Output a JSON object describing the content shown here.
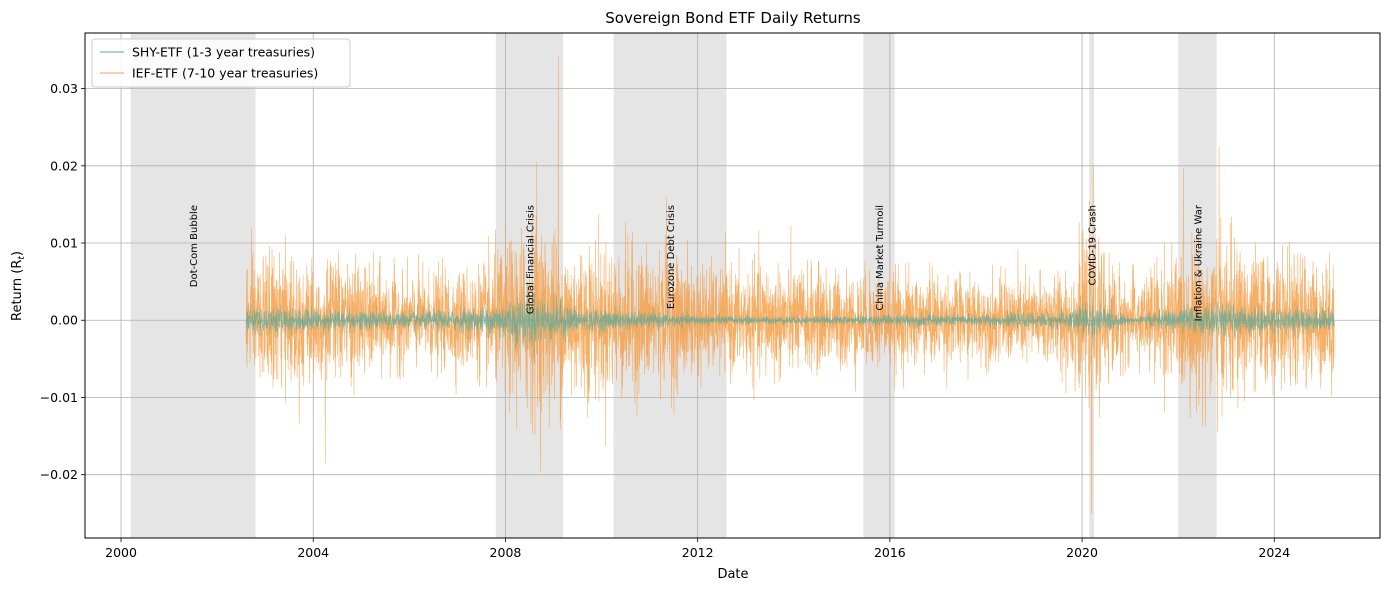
{
  "chart_data": {
    "type": "line",
    "title": "Sovereign Bond ETF Daily Returns",
    "xlabel": "Date",
    "ylabel": "Return (R",
    "ylabel_sub": "t",
    "ylabel_close": ")",
    "xlim": [
      1999.25,
      2026.2
    ],
    "ylim": [
      -0.0282,
      0.0372
    ],
    "x_ticks": [
      {
        "value": 2000,
        "label": "2000"
      },
      {
        "value": 2004,
        "label": "2004"
      },
      {
        "value": 2008,
        "label": "2008"
      },
      {
        "value": 2012,
        "label": "2012"
      },
      {
        "value": 2016,
        "label": "2016"
      },
      {
        "value": 2020,
        "label": "2020"
      },
      {
        "value": 2024,
        "label": "2024"
      }
    ],
    "y_ticks": [
      {
        "value": -0.02,
        "label": "−0.02"
      },
      {
        "value": -0.01,
        "label": "−0.01"
      },
      {
        "value": 0.0,
        "label": "0.00"
      },
      {
        "value": 0.01,
        "label": "0.01"
      },
      {
        "value": 0.02,
        "label": "0.02"
      },
      {
        "value": 0.03,
        "label": "0.03"
      }
    ],
    "grid": true,
    "legend_position": "top-left",
    "crises": [
      {
        "name": "Dot-Com Bubble",
        "start": 2000.2,
        "end": 2002.8
      },
      {
        "name": "Global Financial Crisis",
        "start": 2007.8,
        "end": 2009.2
      },
      {
        "name": "Eurozone Debt Crisis",
        "start": 2010.25,
        "end": 2012.6
      },
      {
        "name": "China Market Turmoil",
        "start": 2015.45,
        "end": 2016.1
      },
      {
        "name": "COVID-19 Crash",
        "start": 2020.15,
        "end": 2020.25
      },
      {
        "name": "Inflation & Ukraine War",
        "start": 2022.0,
        "end": 2022.8
      }
    ],
    "series": [
      {
        "name": "SHY-ETF (1-3 year treasuries)",
        "color": "#5fa89a",
        "start": 2002.6,
        "end": 2025.25,
        "volatility": [
          [
            2002.6,
            0.0009
          ],
          [
            2003.5,
            0.0008
          ],
          [
            2004.5,
            0.0007
          ],
          [
            2006.0,
            0.0006
          ],
          [
            2007.5,
            0.0008
          ],
          [
            2008.5,
            0.0018
          ],
          [
            2009.5,
            0.0008
          ],
          [
            2011.0,
            0.0005
          ],
          [
            2012.5,
            0.0003
          ],
          [
            2013.5,
            0.00025
          ],
          [
            2015.0,
            0.0003
          ],
          [
            2016.5,
            0.0004
          ],
          [
            2018.0,
            0.0004
          ],
          [
            2019.5,
            0.0005
          ],
          [
            2020.2,
            0.0012
          ],
          [
            2021.0,
            0.0002
          ],
          [
            2022.0,
            0.0008
          ],
          [
            2023.0,
            0.001
          ],
          [
            2024.0,
            0.0008
          ],
          [
            2025.25,
            0.0007
          ]
        ]
      },
      {
        "name": "IEF-ETF (7-10 year treasuries)",
        "color": "#f5a04a",
        "start": 2002.6,
        "end": 2025.25,
        "volatility": [
          [
            2002.6,
            0.004
          ],
          [
            2003.5,
            0.0042
          ],
          [
            2004.5,
            0.0038
          ],
          [
            2006.0,
            0.0028
          ],
          [
            2007.5,
            0.0034
          ],
          [
            2008.5,
            0.0062
          ],
          [
            2009.5,
            0.005
          ],
          [
            2011.0,
            0.0045
          ],
          [
            2012.5,
            0.0032
          ],
          [
            2013.5,
            0.0036
          ],
          [
            2015.0,
            0.003
          ],
          [
            2016.5,
            0.003
          ],
          [
            2018.0,
            0.0026
          ],
          [
            2019.5,
            0.003
          ],
          [
            2020.2,
            0.005
          ],
          [
            2021.0,
            0.0025
          ],
          [
            2022.0,
            0.0045
          ],
          [
            2022.8,
            0.0052
          ],
          [
            2024.0,
            0.004
          ],
          [
            2025.25,
            0.0038
          ]
        ],
        "extremes": [
          {
            "x": 2004.25,
            "y": -0.0185
          },
          {
            "x": 2009.1,
            "y": 0.0343
          },
          {
            "x": 2008.65,
            "y": 0.0205
          },
          {
            "x": 2011.35,
            "y": 0.0158
          },
          {
            "x": 2020.2,
            "y": -0.025
          },
          {
            "x": 2020.23,
            "y": 0.02
          },
          {
            "x": 2022.85,
            "y": 0.0225
          }
        ]
      }
    ]
  }
}
